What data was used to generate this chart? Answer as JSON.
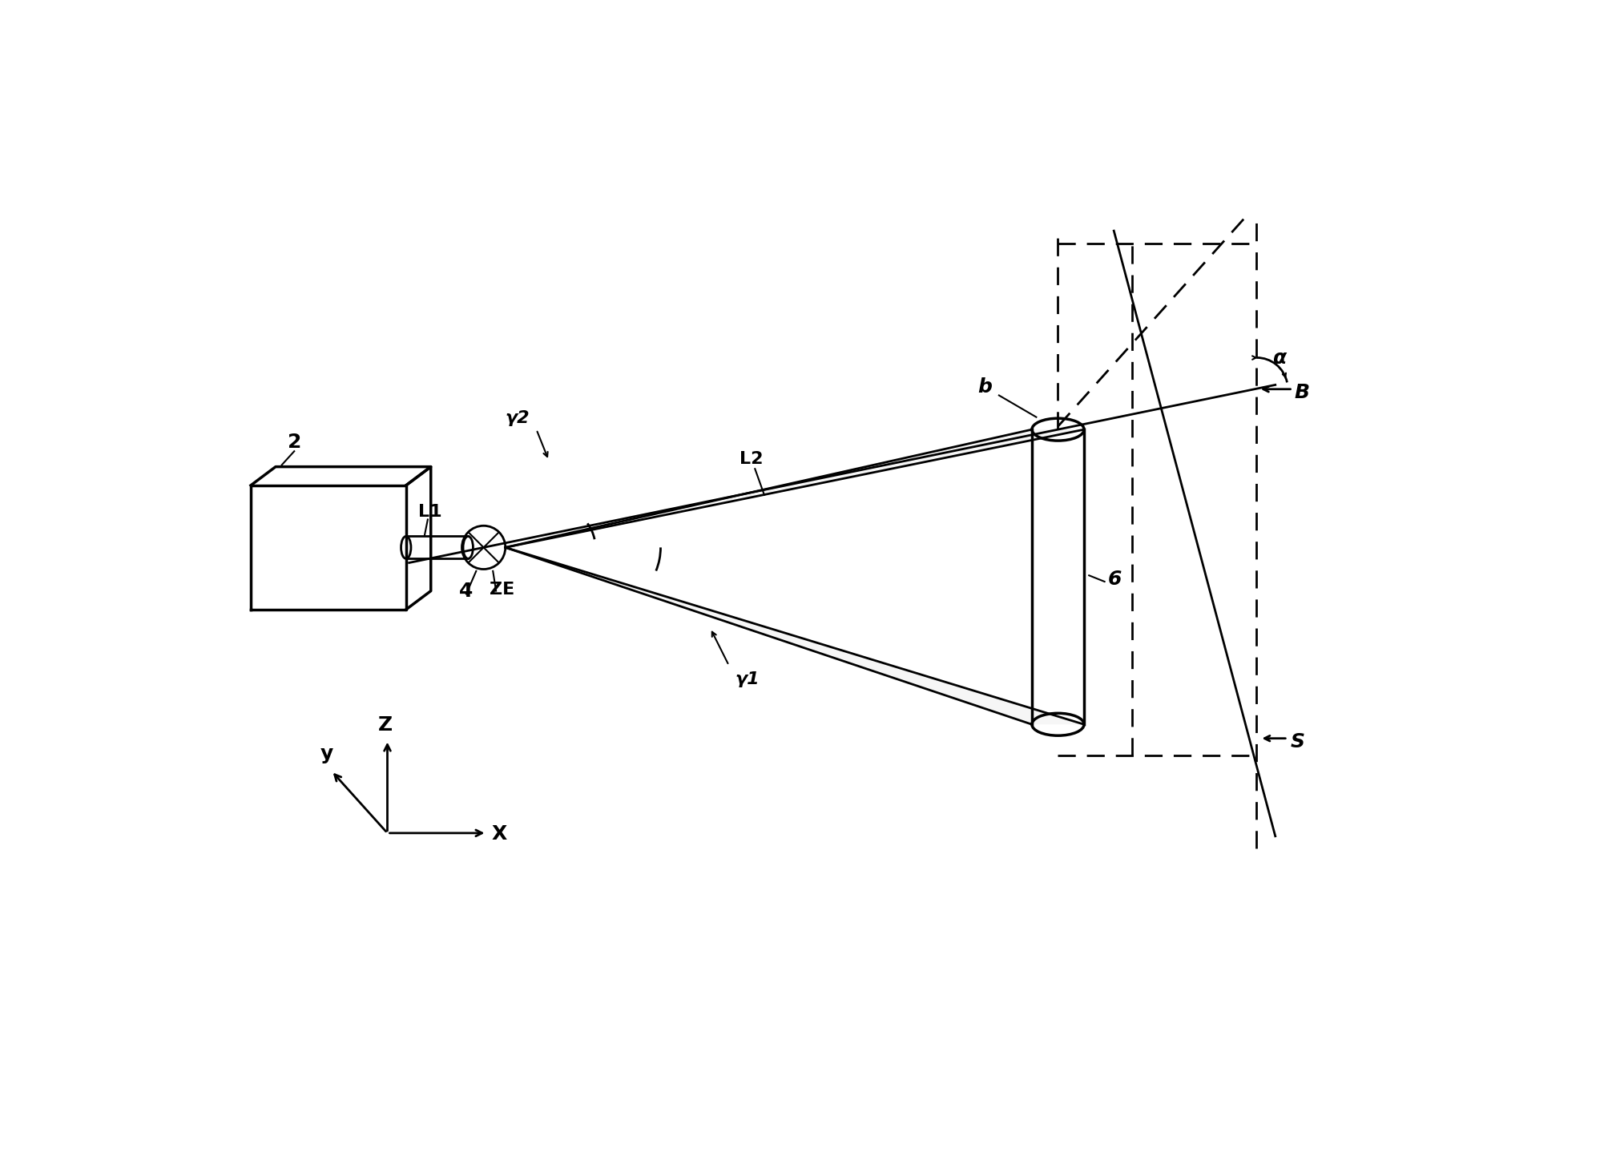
{
  "bg_color": "#ffffff",
  "lc": "#000000",
  "fig_width": 20.08,
  "fig_height": 14.43,
  "lw": 2.0,
  "lw_thick": 2.5,
  "lw_thin": 1.5,
  "labels": {
    "num2": "2",
    "num4": "4",
    "num6": "6",
    "L1": "L1",
    "L2": "L2",
    "ZE": "ZE",
    "b": "b",
    "B": "B",
    "S": "S",
    "alpha": "α",
    "gamma1": "γ1",
    "gamma2": "γ2",
    "X": "X",
    "Y": "y",
    "Z": "Z"
  },
  "fontsize_large": 18,
  "fontsize_med": 16,
  "fontsize_small": 15
}
